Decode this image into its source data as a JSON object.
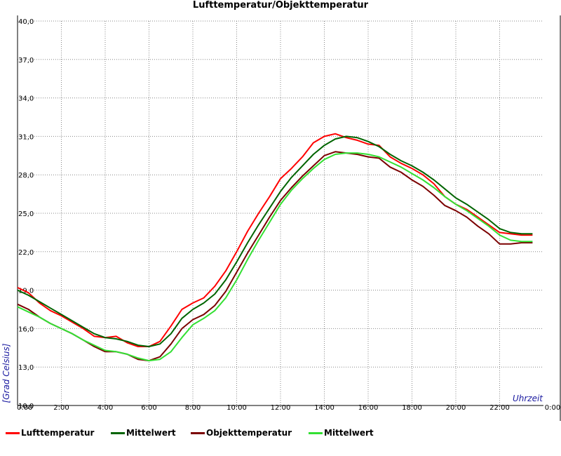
{
  "chart_data": {
    "type": "line",
    "title": "Lufttemperatur/Objekttemperatur",
    "xlabel": "Uhrzeit",
    "ylabel": "[Grad Celsius]",
    "xlim": [
      0,
      24
    ],
    "ylim": [
      10,
      40
    ],
    "x_ticks": [
      "0:00",
      "2:00",
      "4:00",
      "6:00",
      "8:00",
      "10:00",
      "12:00",
      "14:00",
      "16:00",
      "18:00",
      "20:00",
      "22:00",
      "0:00"
    ],
    "y_ticks": [
      "10,0",
      "13,0",
      "16,0",
      "19,0",
      "22,0",
      "25,0",
      "28,0",
      "31,0",
      "34,0",
      "37,0",
      "40,0"
    ],
    "grid": true,
    "legend": "bottom",
    "series": [
      {
        "name": "Lufttemperatur",
        "color": "#ff0000",
        "x": [
          0,
          0.5,
          1,
          1.5,
          2,
          2.5,
          3,
          3.5,
          4,
          4.5,
          5,
          5.5,
          6,
          6.5,
          7,
          7.5,
          8,
          8.5,
          9,
          9.5,
          10,
          10.5,
          11,
          11.5,
          12,
          12.5,
          13,
          13.5,
          14,
          14.5,
          15,
          15.5,
          16,
          16.5,
          17,
          17.5,
          18,
          18.5,
          19,
          19.5,
          20,
          20.5,
          21,
          21.5,
          22,
          22.5,
          23,
          23.5
        ],
        "y": [
          19.2,
          18.8,
          18.0,
          17.4,
          17.0,
          16.5,
          16.0,
          15.4,
          15.3,
          15.4,
          14.9,
          14.6,
          14.6,
          15.0,
          16.2,
          17.5,
          18.0,
          18.4,
          19.3,
          20.5,
          22.0,
          23.6,
          25.0,
          26.3,
          27.7,
          28.5,
          29.4,
          30.5,
          31.0,
          31.2,
          30.9,
          30.7,
          30.4,
          30.3,
          29.4,
          28.9,
          28.5,
          28.0,
          27.3,
          26.3,
          25.7,
          25.3,
          24.7,
          24.1,
          23.5,
          23.4,
          23.3,
          23.3
        ]
      },
      {
        "name": "Mittelwert",
        "color": "#006400",
        "x": [
          0,
          0.5,
          1,
          1.5,
          2,
          2.5,
          3,
          3.5,
          4,
          4.5,
          5,
          5.5,
          6,
          6.5,
          7,
          7.5,
          8,
          8.5,
          9,
          9.5,
          10,
          10.5,
          11,
          11.5,
          12,
          12.5,
          13,
          13.5,
          14,
          14.5,
          15,
          15.5,
          16,
          16.5,
          17,
          17.5,
          18,
          18.5,
          19,
          19.5,
          20,
          20.5,
          21,
          21.5,
          22,
          22.5,
          23,
          23.5
        ],
        "y": [
          19.0,
          18.6,
          18.1,
          17.6,
          17.1,
          16.6,
          16.1,
          15.6,
          15.3,
          15.2,
          15.0,
          14.7,
          14.6,
          14.8,
          15.6,
          16.8,
          17.5,
          18.0,
          18.7,
          19.8,
          21.2,
          22.7,
          24.1,
          25.4,
          26.7,
          27.8,
          28.7,
          29.6,
          30.3,
          30.8,
          31.0,
          30.9,
          30.6,
          30.2,
          29.6,
          29.1,
          28.7,
          28.2,
          27.6,
          26.9,
          26.2,
          25.7,
          25.1,
          24.5,
          23.8,
          23.5,
          23.4,
          23.4
        ]
      },
      {
        "name": "Objekttemperatur",
        "color": "#7b0000",
        "x": [
          0,
          0.5,
          1,
          1.5,
          2,
          2.5,
          3,
          3.5,
          4,
          4.5,
          5,
          5.5,
          6,
          6.5,
          7,
          7.5,
          8,
          8.5,
          9,
          9.5,
          10,
          10.5,
          11,
          11.5,
          12,
          12.5,
          13,
          13.5,
          14,
          14.5,
          15,
          15.5,
          16,
          16.5,
          17,
          17.5,
          18,
          18.5,
          19,
          19.5,
          20,
          20.5,
          21,
          21.5,
          22,
          22.5,
          23,
          23.5
        ],
        "y": [
          17.9,
          17.5,
          16.9,
          16.4,
          16.0,
          15.6,
          15.1,
          14.6,
          14.2,
          14.2,
          14.0,
          13.6,
          13.5,
          13.8,
          14.8,
          16.0,
          16.7,
          17.1,
          17.8,
          18.9,
          20.4,
          21.9,
          23.3,
          24.7,
          26.0,
          27.0,
          27.9,
          28.7,
          29.5,
          29.8,
          29.7,
          29.6,
          29.4,
          29.3,
          28.6,
          28.2,
          27.6,
          27.1,
          26.4,
          25.6,
          25.2,
          24.7,
          24.0,
          23.4,
          22.6,
          22.6,
          22.7,
          22.7
        ]
      },
      {
        "name": "Mittelwert",
        "color": "#33e033",
        "x": [
          0,
          0.5,
          1,
          1.5,
          2,
          2.5,
          3,
          3.5,
          4,
          4.5,
          5,
          5.5,
          6,
          6.5,
          7,
          7.5,
          8,
          8.5,
          9,
          9.5,
          10,
          10.5,
          11,
          11.5,
          12,
          12.5,
          13,
          13.5,
          14,
          14.5,
          15,
          15.5,
          16,
          16.5,
          17,
          17.5,
          18,
          18.5,
          19,
          19.5,
          20,
          20.5,
          21,
          21.5,
          22,
          22.5,
          23,
          23.5
        ],
        "y": [
          17.7,
          17.3,
          16.9,
          16.4,
          16.0,
          15.6,
          15.1,
          14.7,
          14.3,
          14.2,
          14.0,
          13.7,
          13.5,
          13.6,
          14.2,
          15.3,
          16.3,
          16.8,
          17.4,
          18.4,
          19.8,
          21.4,
          22.9,
          24.3,
          25.7,
          26.8,
          27.7,
          28.5,
          29.2,
          29.6,
          29.7,
          29.7,
          29.6,
          29.4,
          29.0,
          28.6,
          28.1,
          27.6,
          27.0,
          26.3,
          25.7,
          25.2,
          24.6,
          24.0,
          23.3,
          22.9,
          22.8,
          22.8
        ]
      }
    ]
  }
}
